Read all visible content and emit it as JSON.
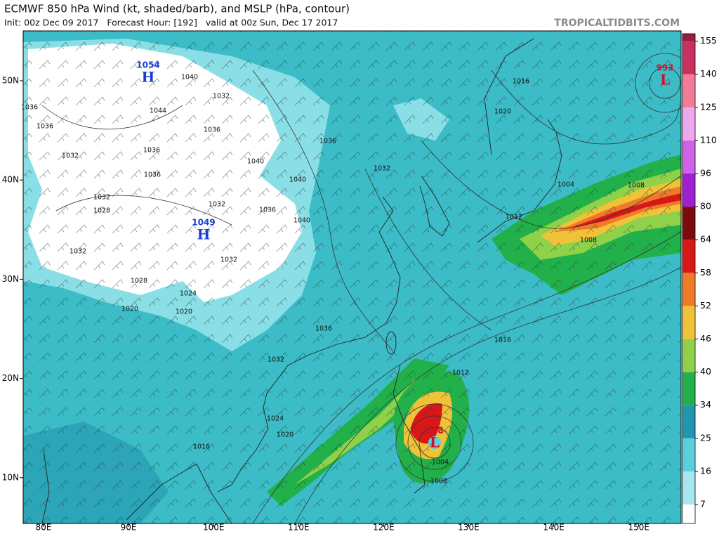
{
  "header": {
    "title": "ECMWF 850 hPa Wind (kt, shaded/barb), and MSLP (hPa, contour)",
    "subtitle": "Init: 00z Dec 09 2017   Forecast Hour: [192]   valid at 00z Sun, Dec 17 2017",
    "source": "TROPICALTIDBITS.COM"
  },
  "map": {
    "lat_labels": [
      "50N",
      "40N",
      "30N",
      "20N",
      "10N"
    ],
    "lon_labels": [
      "80E",
      "90E",
      "100E",
      "110E",
      "120E",
      "130E",
      "140E",
      "150E"
    ],
    "pressure_centers": [
      {
        "type": "H",
        "value": "1054"
      },
      {
        "type": "H",
        "value": "1049"
      },
      {
        "type": "L",
        "value": "993"
      },
      {
        "type": "L",
        "value": "998"
      }
    ],
    "contour_labels": [
      "1040",
      "1032",
      "1036",
      "1036",
      "1044",
      "1036",
      "1036",
      "1032",
      "1040",
      "1036",
      "1032",
      "1040",
      "1036",
      "1032",
      "1028",
      "1032",
      "1036",
      "1040",
      "1032",
      "1032",
      "1028",
      "1024",
      "1020",
      "1020",
      "1036",
      "1032",
      "1024",
      "1020",
      "1016",
      "1016",
      "1020",
      "1004",
      "1008",
      "1012",
      "1008",
      "1016",
      "1012",
      "1004",
      "1008"
    ]
  },
  "colorbar": {
    "ticks": [
      7,
      16,
      25,
      34,
      40,
      46,
      52,
      58,
      64,
      80,
      96,
      110,
      125,
      140,
      155
    ],
    "colors": [
      "#ffffff",
      "#a6e6ee",
      "#5ccfdc",
      "#2296b0",
      "#22b04a",
      "#8fd24a",
      "#f0c238",
      "#ef7a28",
      "#d81818",
      "#7c0c0c",
      "#a020d0",
      "#cf62e6",
      "#eea8ee",
      "#f07c98",
      "#c83060",
      "#9a1c40"
    ]
  }
}
